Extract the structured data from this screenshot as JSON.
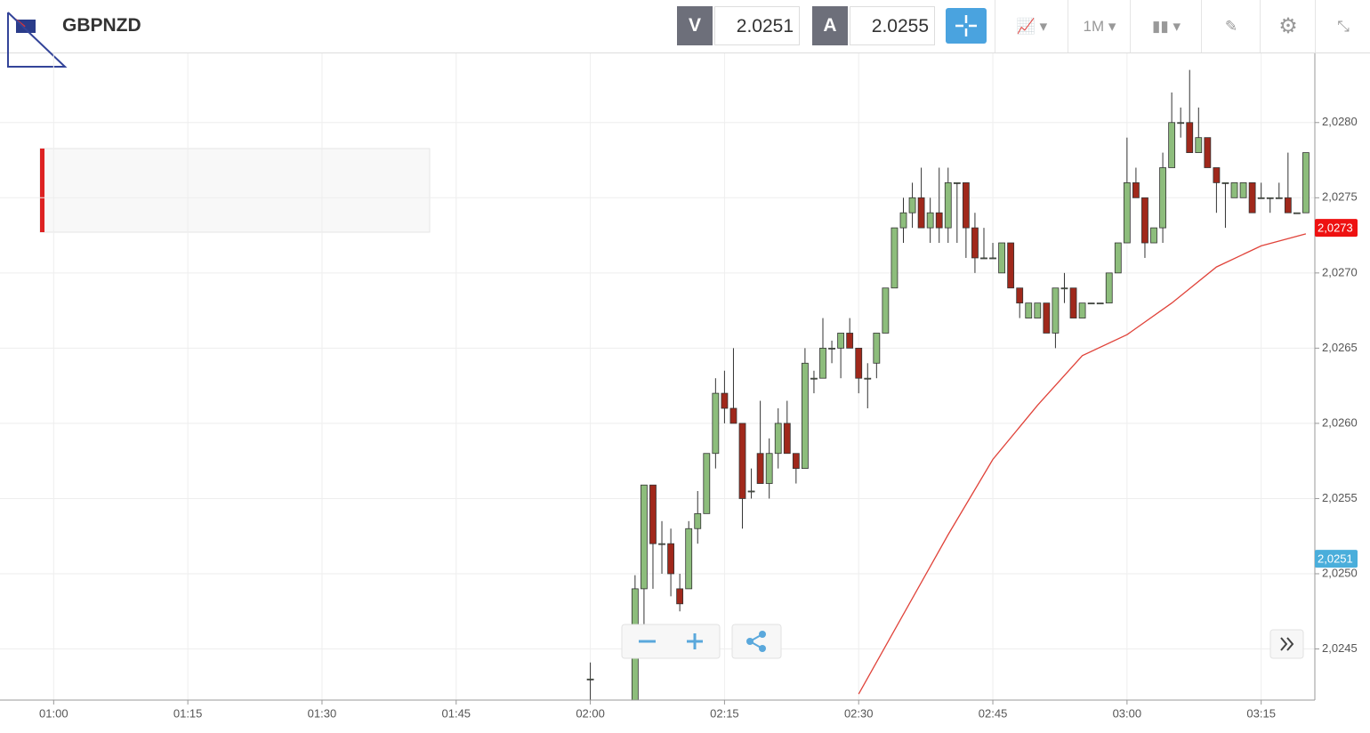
{
  "header": {
    "symbol": "GBPNZD",
    "bid_label": "V",
    "bid": "2.0251",
    "ask_label": "A",
    "ask": "2.0255",
    "timeframe": "1M"
  },
  "chart_data": {
    "type": "candlestick",
    "x": [
      "02:00",
      "02:05",
      "02:06",
      "02:07",
      "02:08",
      "02:09",
      "02:10",
      "02:11",
      "02:12",
      "02:13",
      "02:14",
      "02:15",
      "02:16",
      "02:17",
      "02:18",
      "02:19",
      "02:20",
      "02:21",
      "02:22",
      "02:23",
      "02:24",
      "02:25",
      "02:26",
      "02:27",
      "02:28",
      "02:29",
      "02:30",
      "02:31",
      "02:32",
      "02:33",
      "02:34",
      "02:35",
      "02:36",
      "02:37",
      "02:38",
      "02:39",
      "02:40",
      "02:41",
      "02:42",
      "02:43",
      "02:44",
      "02:45",
      "02:46",
      "02:47",
      "02:48",
      "02:49",
      "02:50",
      "02:51",
      "02:52",
      "02:53",
      "02:54",
      "02:55",
      "02:56",
      "02:57",
      "02:58",
      "02:59",
      "03:00",
      "03:01",
      "03:02",
      "03:03",
      "03:04",
      "03:05",
      "03:06",
      "03:07",
      "03:08",
      "03:09",
      "03:10",
      "03:11",
      "03:12",
      "03:13",
      "03:14",
      "03:15",
      "03:16",
      "03:17",
      "03:18",
      "03:19",
      "03:20"
    ],
    "open": [
      2.0243,
      2.0241,
      2.0249,
      2.02559,
      2.0252,
      2.0252,
      2.0249,
      2.0249,
      2.0253,
      2.0254,
      2.0258,
      2.0262,
      2.0261,
      2.026,
      2.02555,
      2.0258,
      2.0256,
      2.0258,
      2.026,
      2.0258,
      2.0257,
      2.0263,
      2.0263,
      2.0265,
      2.0265,
      2.0266,
      2.0265,
      2.0263,
      2.0264,
      2.0266,
      2.0269,
      2.0273,
      2.0274,
      2.0275,
      2.0273,
      2.0274,
      2.0273,
      2.0276,
      2.0276,
      2.0273,
      2.0271,
      2.0271,
      2.027,
      2.0272,
      2.0269,
      2.0267,
      2.0267,
      2.0268,
      2.0266,
      2.0269,
      2.0269,
      2.0267,
      2.0268,
      2.0268,
      2.0268,
      2.027,
      2.0272,
      2.0276,
      2.0275,
      2.0272,
      2.0273,
      2.0277,
      2.028,
      2.028,
      2.0278,
      2.0279,
      2.0277,
      2.0276,
      2.0275,
      2.0275,
      2.0276,
      2.0275,
      2.0275,
      2.0275,
      2.0275,
      2.0274,
      2.0274
    ],
    "high": [
      2.02441,
      2.02499,
      2.02559,
      2.02559,
      2.02535,
      2.0253,
      2.025,
      2.02535,
      2.02555,
      2.0258,
      2.0263,
      2.02635,
      2.0265,
      2.026,
      2.0257,
      2.02615,
      2.0259,
      2.0261,
      2.02615,
      2.0258,
      2.0265,
      2.02635,
      2.0267,
      2.02655,
      2.0266,
      2.0267,
      2.0265,
      2.0264,
      2.0266,
      2.0269,
      2.0273,
      2.0275,
      2.0276,
      2.0277,
      2.0275,
      2.0277,
      2.0277,
      2.0276,
      2.0276,
      2.0274,
      2.0273,
      2.0272,
      2.0272,
      2.0272,
      2.0269,
      2.0268,
      2.0268,
      2.0268,
      2.0269,
      2.027,
      2.0269,
      2.0268,
      2.0268,
      2.0268,
      2.027,
      2.0272,
      2.0279,
      2.0277,
      2.0275,
      2.0273,
      2.0278,
      2.0282,
      2.0281,
      2.02835,
      2.0281,
      2.0279,
      2.0277,
      2.0276,
      2.0276,
      2.0276,
      2.0276,
      2.0276,
      2.0275,
      2.0276,
      2.0278,
      2.0274,
      2.0278
    ],
    "low": [
      2.0241,
      2.024,
      2.0246,
      2.0249,
      2.025,
      2.02485,
      2.02475,
      2.0249,
      2.0252,
      2.0254,
      2.0257,
      2.026,
      2.026,
      2.0253,
      2.0255,
      2.0256,
      2.0255,
      2.0257,
      2.0258,
      2.0256,
      2.0257,
      2.0262,
      2.0263,
      2.0264,
      2.0263,
      2.0265,
      2.0262,
      2.0261,
      2.0263,
      2.0266,
      2.0269,
      2.0272,
      2.0273,
      2.0273,
      2.0272,
      2.0272,
      2.0272,
      2.0272,
      2.0271,
      2.027,
      2.0271,
      2.0271,
      2.027,
      2.0269,
      2.0267,
      2.0267,
      2.0267,
      2.0266,
      2.0265,
      2.0268,
      2.0267,
      2.0267,
      2.0268,
      2.0268,
      2.0268,
      2.027,
      2.0272,
      2.0275,
      2.0271,
      2.0272,
      2.0272,
      2.0277,
      2.0279,
      2.0278,
      2.0278,
      2.0277,
      2.0274,
      2.0273,
      2.0275,
      2.0275,
      2.0274,
      2.0275,
      2.0274,
      2.0275,
      2.0274,
      2.0274,
      2.0274
    ],
    "close": [
      2.0243,
      2.0249,
      2.02559,
      2.0252,
      2.0252,
      2.025,
      2.0248,
      2.0253,
      2.0254,
      2.0258,
      2.0262,
      2.0261,
      2.026,
      2.0255,
      2.02555,
      2.0256,
      2.0258,
      2.026,
      2.0258,
      2.0257,
      2.0264,
      2.0263,
      2.0265,
      2.0265,
      2.0266,
      2.0265,
      2.0263,
      2.0263,
      2.0266,
      2.0269,
      2.0273,
      2.0274,
      2.0275,
      2.0273,
      2.0274,
      2.0273,
      2.0276,
      2.0276,
      2.0273,
      2.0271,
      2.0271,
      2.0271,
      2.0272,
      2.0269,
      2.0268,
      2.0268,
      2.0268,
      2.0266,
      2.0269,
      2.0269,
      2.0267,
      2.0268,
      2.0268,
      2.0268,
      2.027,
      2.0272,
      2.0276,
      2.0275,
      2.0272,
      2.0273,
      2.0277,
      2.028,
      2.028,
      2.0278,
      2.0279,
      2.0277,
      2.0276,
      2.0276,
      2.0276,
      2.0276,
      2.0274,
      2.0275,
      2.0275,
      2.0275,
      2.0274,
      2.0274,
      2.0278
    ],
    "up_color": "#8dbd7c",
    "down_color": "#a0281b",
    "ma": {
      "type": "line",
      "color": "#e0433a",
      "x": [
        "02:30",
        "02:35",
        "02:40",
        "02:45",
        "02:50",
        "02:55",
        "03:00",
        "03:05",
        "03:10",
        "03:15",
        "03:20"
      ],
      "values": [
        2.0242,
        2.02473,
        2.02526,
        2.02576,
        2.02612,
        2.02645,
        2.02659,
        2.0268,
        2.02704,
        2.02718,
        2.02726
      ]
    },
    "price_markers": [
      {
        "value": 2.0273,
        "label": "2,0273",
        "color": "#ee1111"
      },
      {
        "value": 2.0251,
        "label": "2,0251",
        "color": "#4aaedb"
      }
    ],
    "xlim": [
      "00:54",
      "03:21"
    ],
    "xticks": [
      "01:00",
      "01:15",
      "01:30",
      "01:45",
      "02:00",
      "02:15",
      "02:30",
      "02:45",
      "03:00",
      "03:15"
    ],
    "ylim": [
      2.02416,
      2.02846
    ],
    "yticks": [
      {
        "value": 2.0245,
        "label": "2,0245"
      },
      {
        "value": 2.025,
        "label": "2,0250"
      },
      {
        "value": 2.0255,
        "label": "2,0255"
      },
      {
        "value": 2.026,
        "label": "2,0260"
      },
      {
        "value": 2.0265,
        "label": "2,0265"
      },
      {
        "value": 2.027,
        "label": "2,0270"
      },
      {
        "value": 2.0275,
        "label": "2,0275"
      },
      {
        "value": 2.028,
        "label": "2,0280"
      }
    ],
    "grid": true
  }
}
